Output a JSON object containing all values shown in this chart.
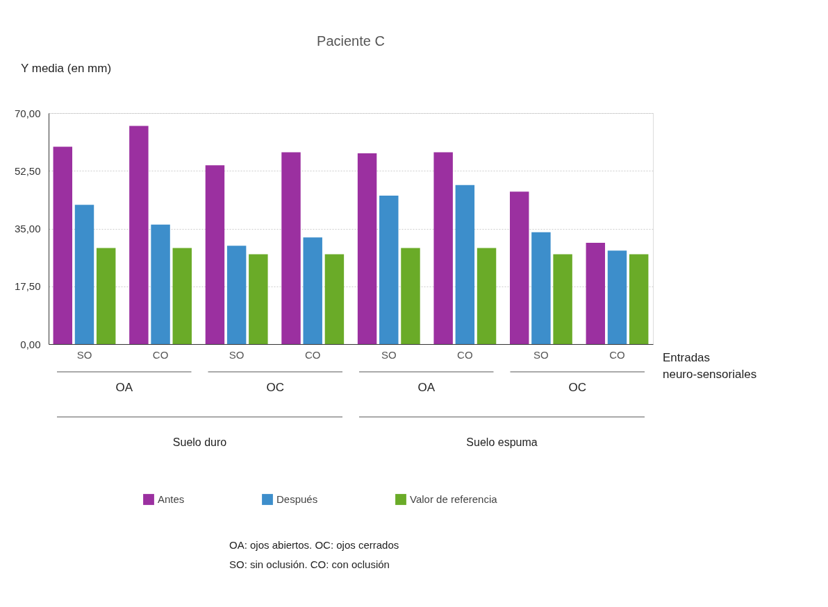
{
  "chart_data": {
    "type": "bar",
    "title": "Paciente C",
    "ylabel": "Y media (en mm)",
    "xlabel": "Entradas neuro-sensoriales",
    "categories": [
      "SO",
      "CO",
      "SO",
      "CO",
      "SO",
      "CO",
      "SO",
      "CO"
    ],
    "series": [
      {
        "name": "Antes",
        "color": "#9b30a0",
        "values": [
          59.8,
          66.1,
          54.2,
          58.1,
          57.8,
          58.1,
          46.2,
          30.7
        ]
      },
      {
        "name": "Después",
        "color": "#3d8ecb",
        "values": [
          42.2,
          36.2,
          29.8,
          32.3,
          45.0,
          48.2,
          33.9,
          28.3
        ]
      },
      {
        "name": "Valor de referencia",
        "color": "#6aab28",
        "values": [
          29.1,
          29.1,
          27.2,
          27.2,
          29.1,
          29.1,
          27.2,
          27.2
        ]
      }
    ],
    "ylim": [
      0,
      70
    ],
    "yticks": [
      {
        "value": 0,
        "label": "0,00"
      },
      {
        "value": 17.5,
        "label": "17,50"
      },
      {
        "value": 35,
        "label": "35,00"
      },
      {
        "value": 52.5,
        "label": "52,50"
      },
      {
        "value": 70,
        "label": "70,00"
      }
    ],
    "grid": "y",
    "legend": "bottom",
    "annotations": [
      "OA",
      "OC",
      "OA",
      "OC",
      "Suelo duro",
      "Suelo espuma",
      "OA: ojos abiertos. OC: ojos cerrados",
      "SO: sin oclusión. CO: con oclusión"
    ]
  }
}
